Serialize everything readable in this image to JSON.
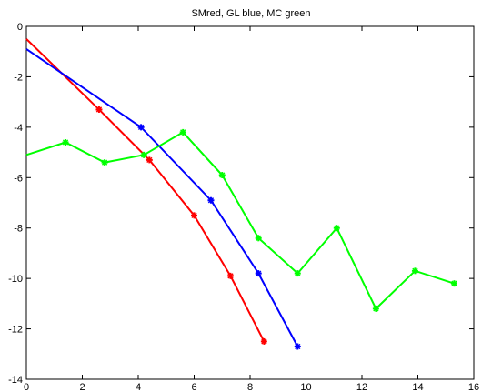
{
  "chart_data": {
    "type": "line",
    "title": "SMred, GL blue, MC green",
    "xlabel": "",
    "ylabel": "",
    "xlim": [
      0,
      16
    ],
    "ylim": [
      -14,
      0
    ],
    "xticks": [
      0,
      2,
      4,
      6,
      8,
      10,
      12,
      14,
      16
    ],
    "yticks": [
      0,
      -2,
      -4,
      -6,
      -8,
      -10,
      -12,
      -14
    ],
    "grid": false,
    "series": [
      {
        "color": "#ff0000",
        "points": [
          [
            0,
            -0.5
          ],
          [
            2.6,
            -3.3
          ],
          [
            4.4,
            -5.3
          ],
          [
            6.0,
            -7.5
          ],
          [
            7.3,
            -9.9
          ],
          [
            8.5,
            -12.5
          ]
        ]
      },
      {
        "color": "#0000ff",
        "points": [
          [
            0,
            -0.9
          ],
          [
            4.1,
            -4.0
          ],
          [
            6.6,
            -6.9
          ],
          [
            8.3,
            -9.8
          ],
          [
            9.7,
            -12.7
          ]
        ]
      },
      {
        "color": "#00ff00",
        "points": [
          [
            0,
            -5.1
          ],
          [
            1.4,
            -4.6
          ],
          [
            2.8,
            -5.4
          ],
          [
            4.2,
            -5.1
          ],
          [
            5.6,
            -4.2
          ],
          [
            7.0,
            -5.9
          ],
          [
            8.3,
            -8.4
          ],
          [
            9.7,
            -9.8
          ],
          [
            11.1,
            -8.0
          ],
          [
            12.5,
            -11.2
          ],
          [
            13.9,
            -9.7
          ],
          [
            15.3,
            -10.2
          ]
        ]
      }
    ]
  }
}
